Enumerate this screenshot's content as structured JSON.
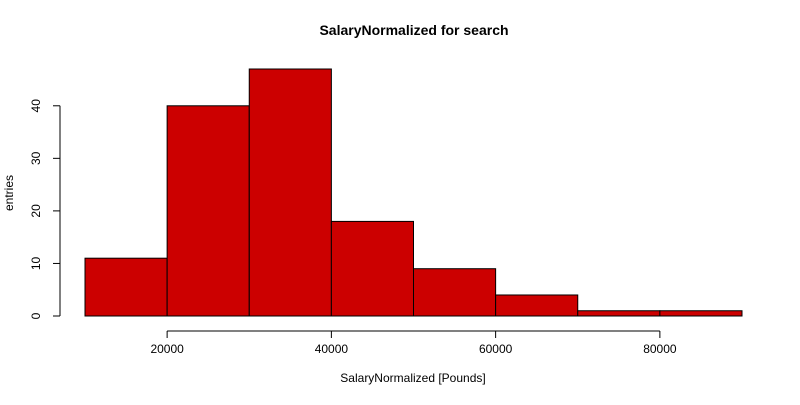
{
  "chart_data": {
    "type": "bar",
    "title": "SalaryNormalized for search",
    "xlabel": "SalaryNormalized [Pounds]",
    "ylabel": "entries",
    "bins": [
      {
        "start": 10000,
        "end": 20000,
        "count": 11
      },
      {
        "start": 20000,
        "end": 30000,
        "count": 40
      },
      {
        "start": 30000,
        "end": 40000,
        "count": 47
      },
      {
        "start": 40000,
        "end": 50000,
        "count": 18
      },
      {
        "start": 50000,
        "end": 60000,
        "count": 9
      },
      {
        "start": 60000,
        "end": 70000,
        "count": 4
      },
      {
        "start": 70000,
        "end": 80000,
        "count": 1
      },
      {
        "start": 80000,
        "end": 90000,
        "count": 1
      }
    ],
    "xlim": [
      10000,
      90000
    ],
    "ylim": [
      0,
      47
    ],
    "x_ticks": [
      20000,
      40000,
      60000,
      80000
    ],
    "y_ticks": [
      0,
      10,
      20,
      30,
      40
    ],
    "grid": false,
    "bar_color": "#cc0000",
    "bar_edge_color": "#000000"
  }
}
